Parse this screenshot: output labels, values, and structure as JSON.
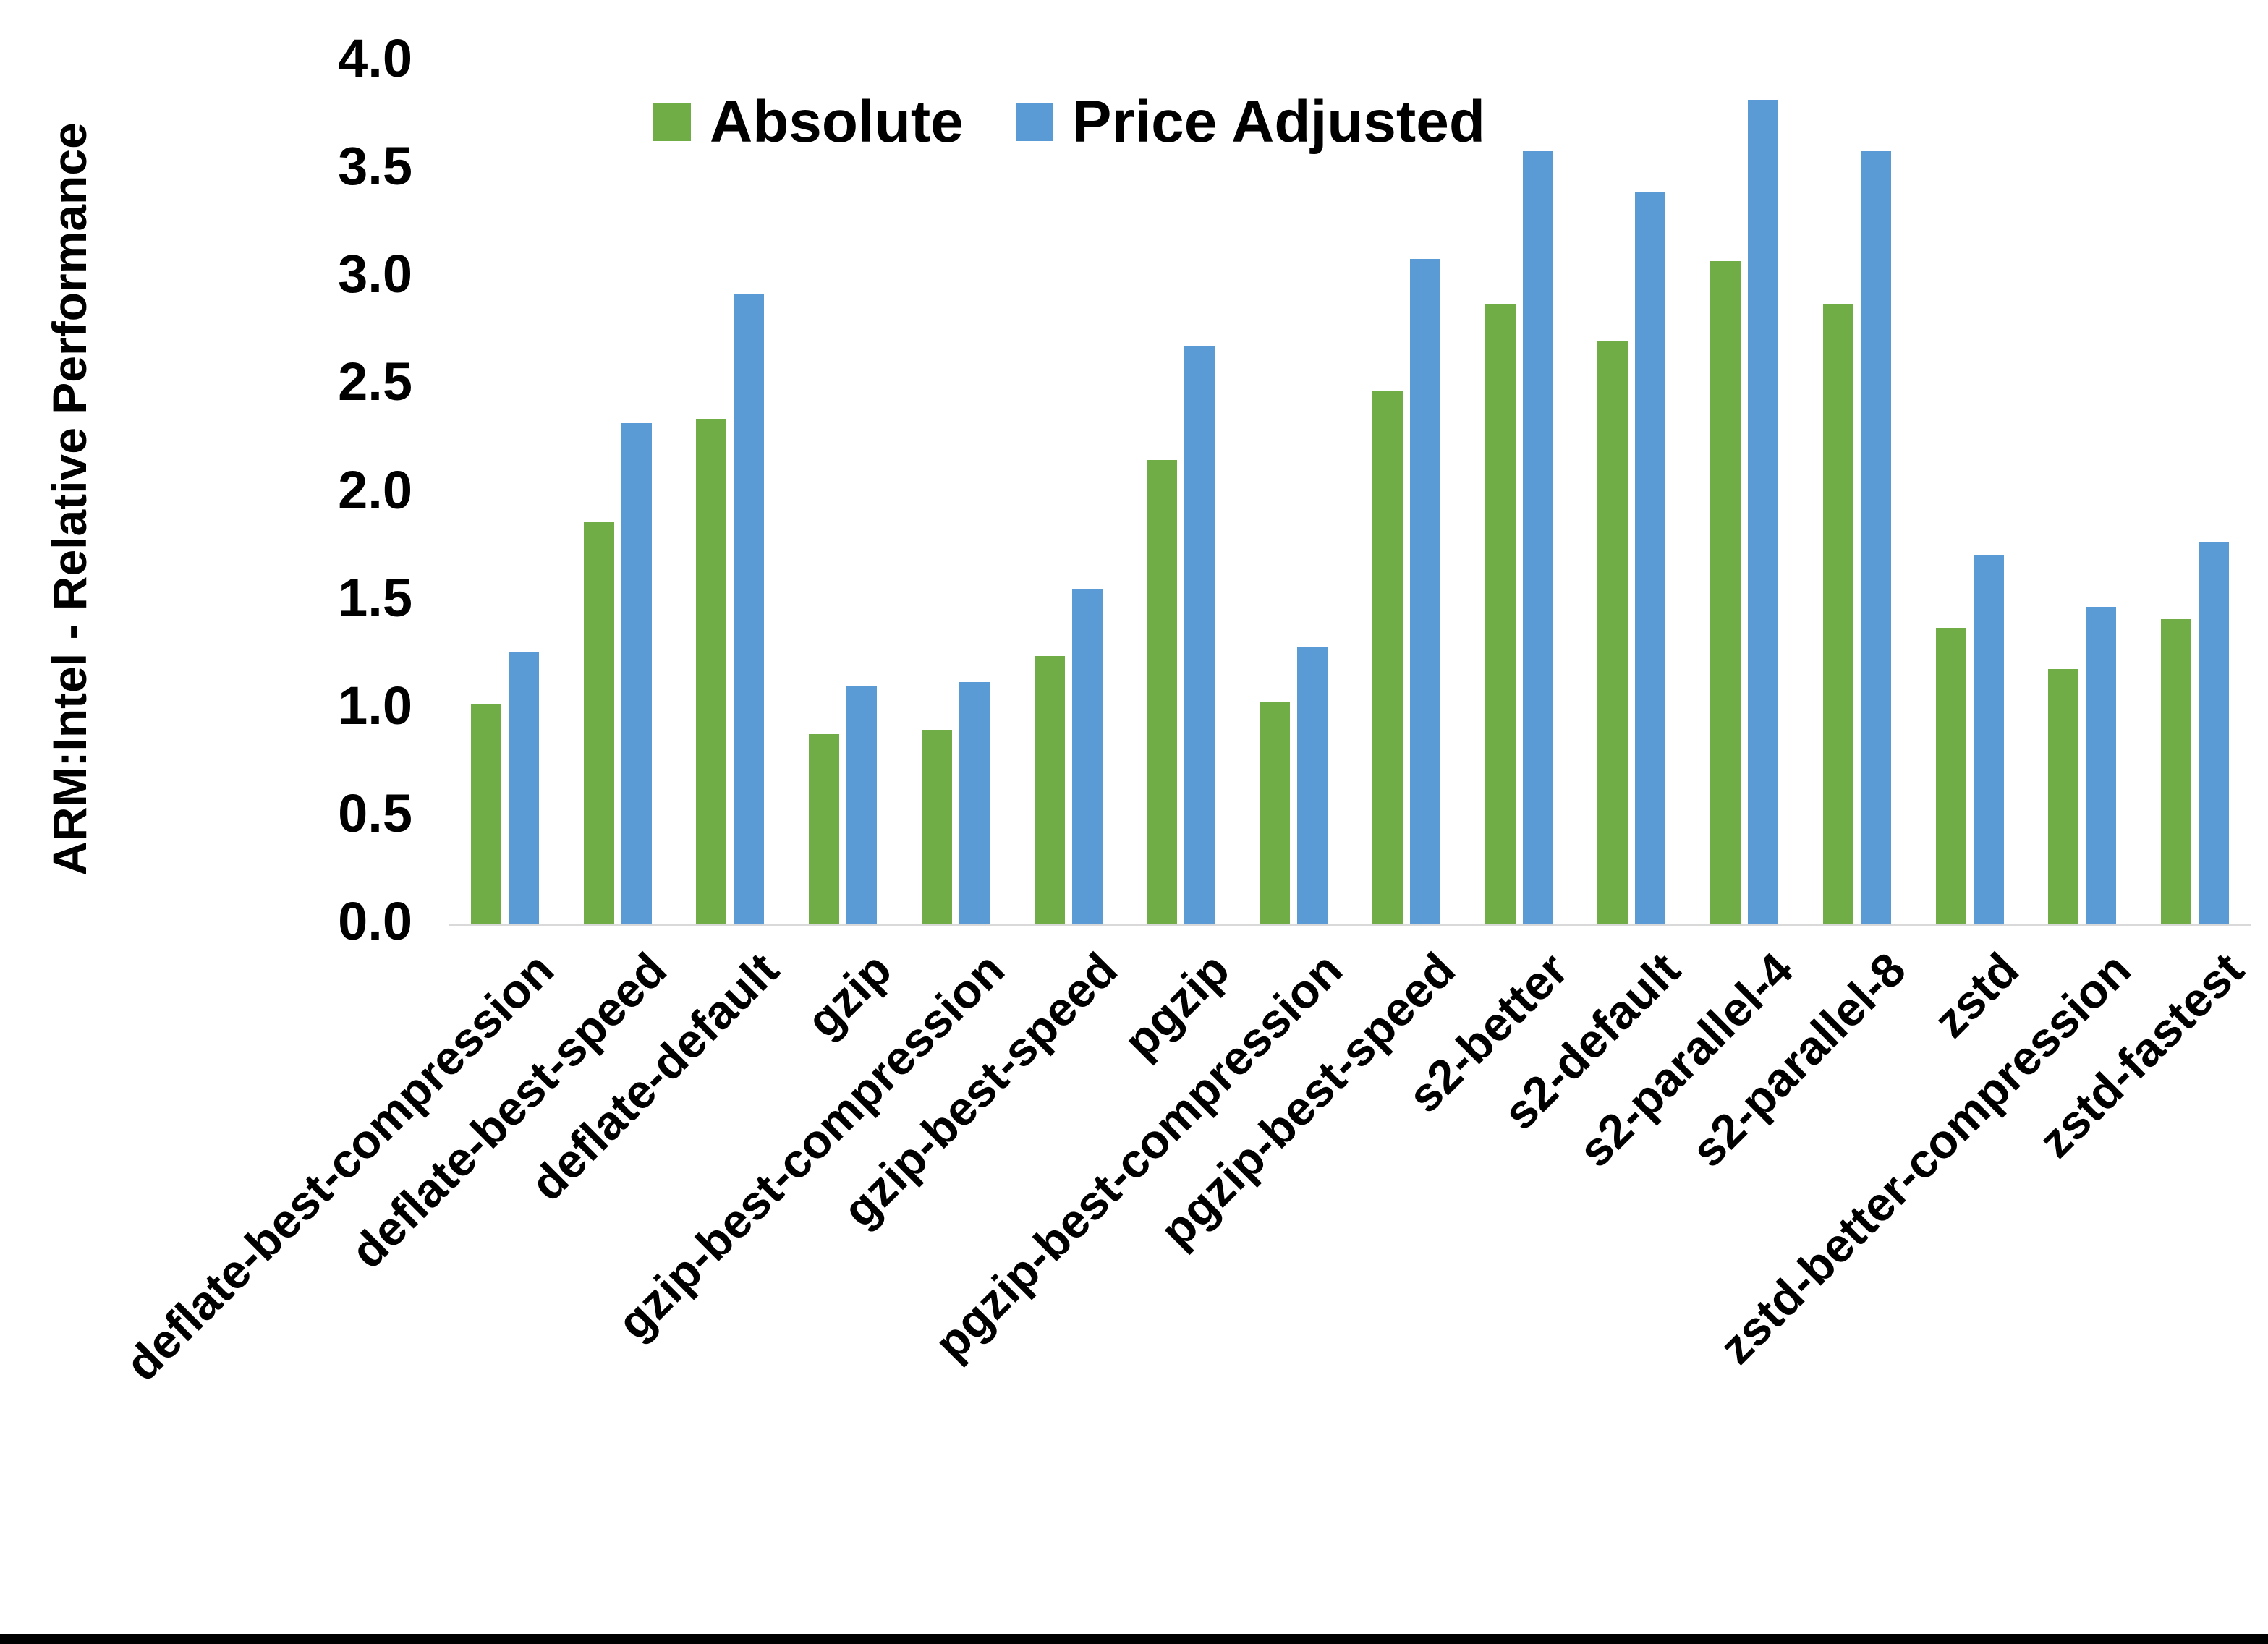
{
  "chart_data": {
    "type": "bar",
    "title": "",
    "xlabel": "",
    "ylabel": "ARM:Intel - Relative Performance",
    "ylim": [
      0.0,
      4.0
    ],
    "ytick_labels": [
      "0.0",
      "0.5",
      "1.0",
      "1.5",
      "2.0",
      "2.5",
      "3.0",
      "3.5",
      "4.0"
    ],
    "grid": false,
    "legend_position": "top-center",
    "categories": [
      "deflate-best-compression",
      "deflate-best-speed",
      "deflate-default",
      "gzip",
      "gzip-best-compression",
      "gzip-best-speed",
      "pgzip",
      "pgzip-best-compression",
      "pgzip-best-speed",
      "s2-better",
      "s2-default",
      "s2-parallel-4",
      "s2-parallel-8",
      "zstd",
      "zstd-better-compression",
      "zstd-fastest"
    ],
    "series": [
      {
        "name": "Absolute",
        "color": "#70AD47",
        "values": [
          1.02,
          1.86,
          2.34,
          0.88,
          0.9,
          1.24,
          2.15,
          1.03,
          2.47,
          2.87,
          2.7,
          3.07,
          2.87,
          1.37,
          1.18,
          1.41
        ]
      },
      {
        "name": "Price Adjusted",
        "color": "#5B9BD5",
        "values": [
          1.26,
          2.32,
          2.92,
          1.1,
          1.12,
          1.55,
          2.68,
          1.28,
          3.08,
          3.58,
          3.39,
          3.82,
          3.58,
          1.71,
          1.47,
          1.77
        ]
      }
    ]
  },
  "colors": {
    "background": "#FFFFFF",
    "axis_line": "#D9D9D9",
    "text": "#000000",
    "bottom_border": "#000000"
  }
}
